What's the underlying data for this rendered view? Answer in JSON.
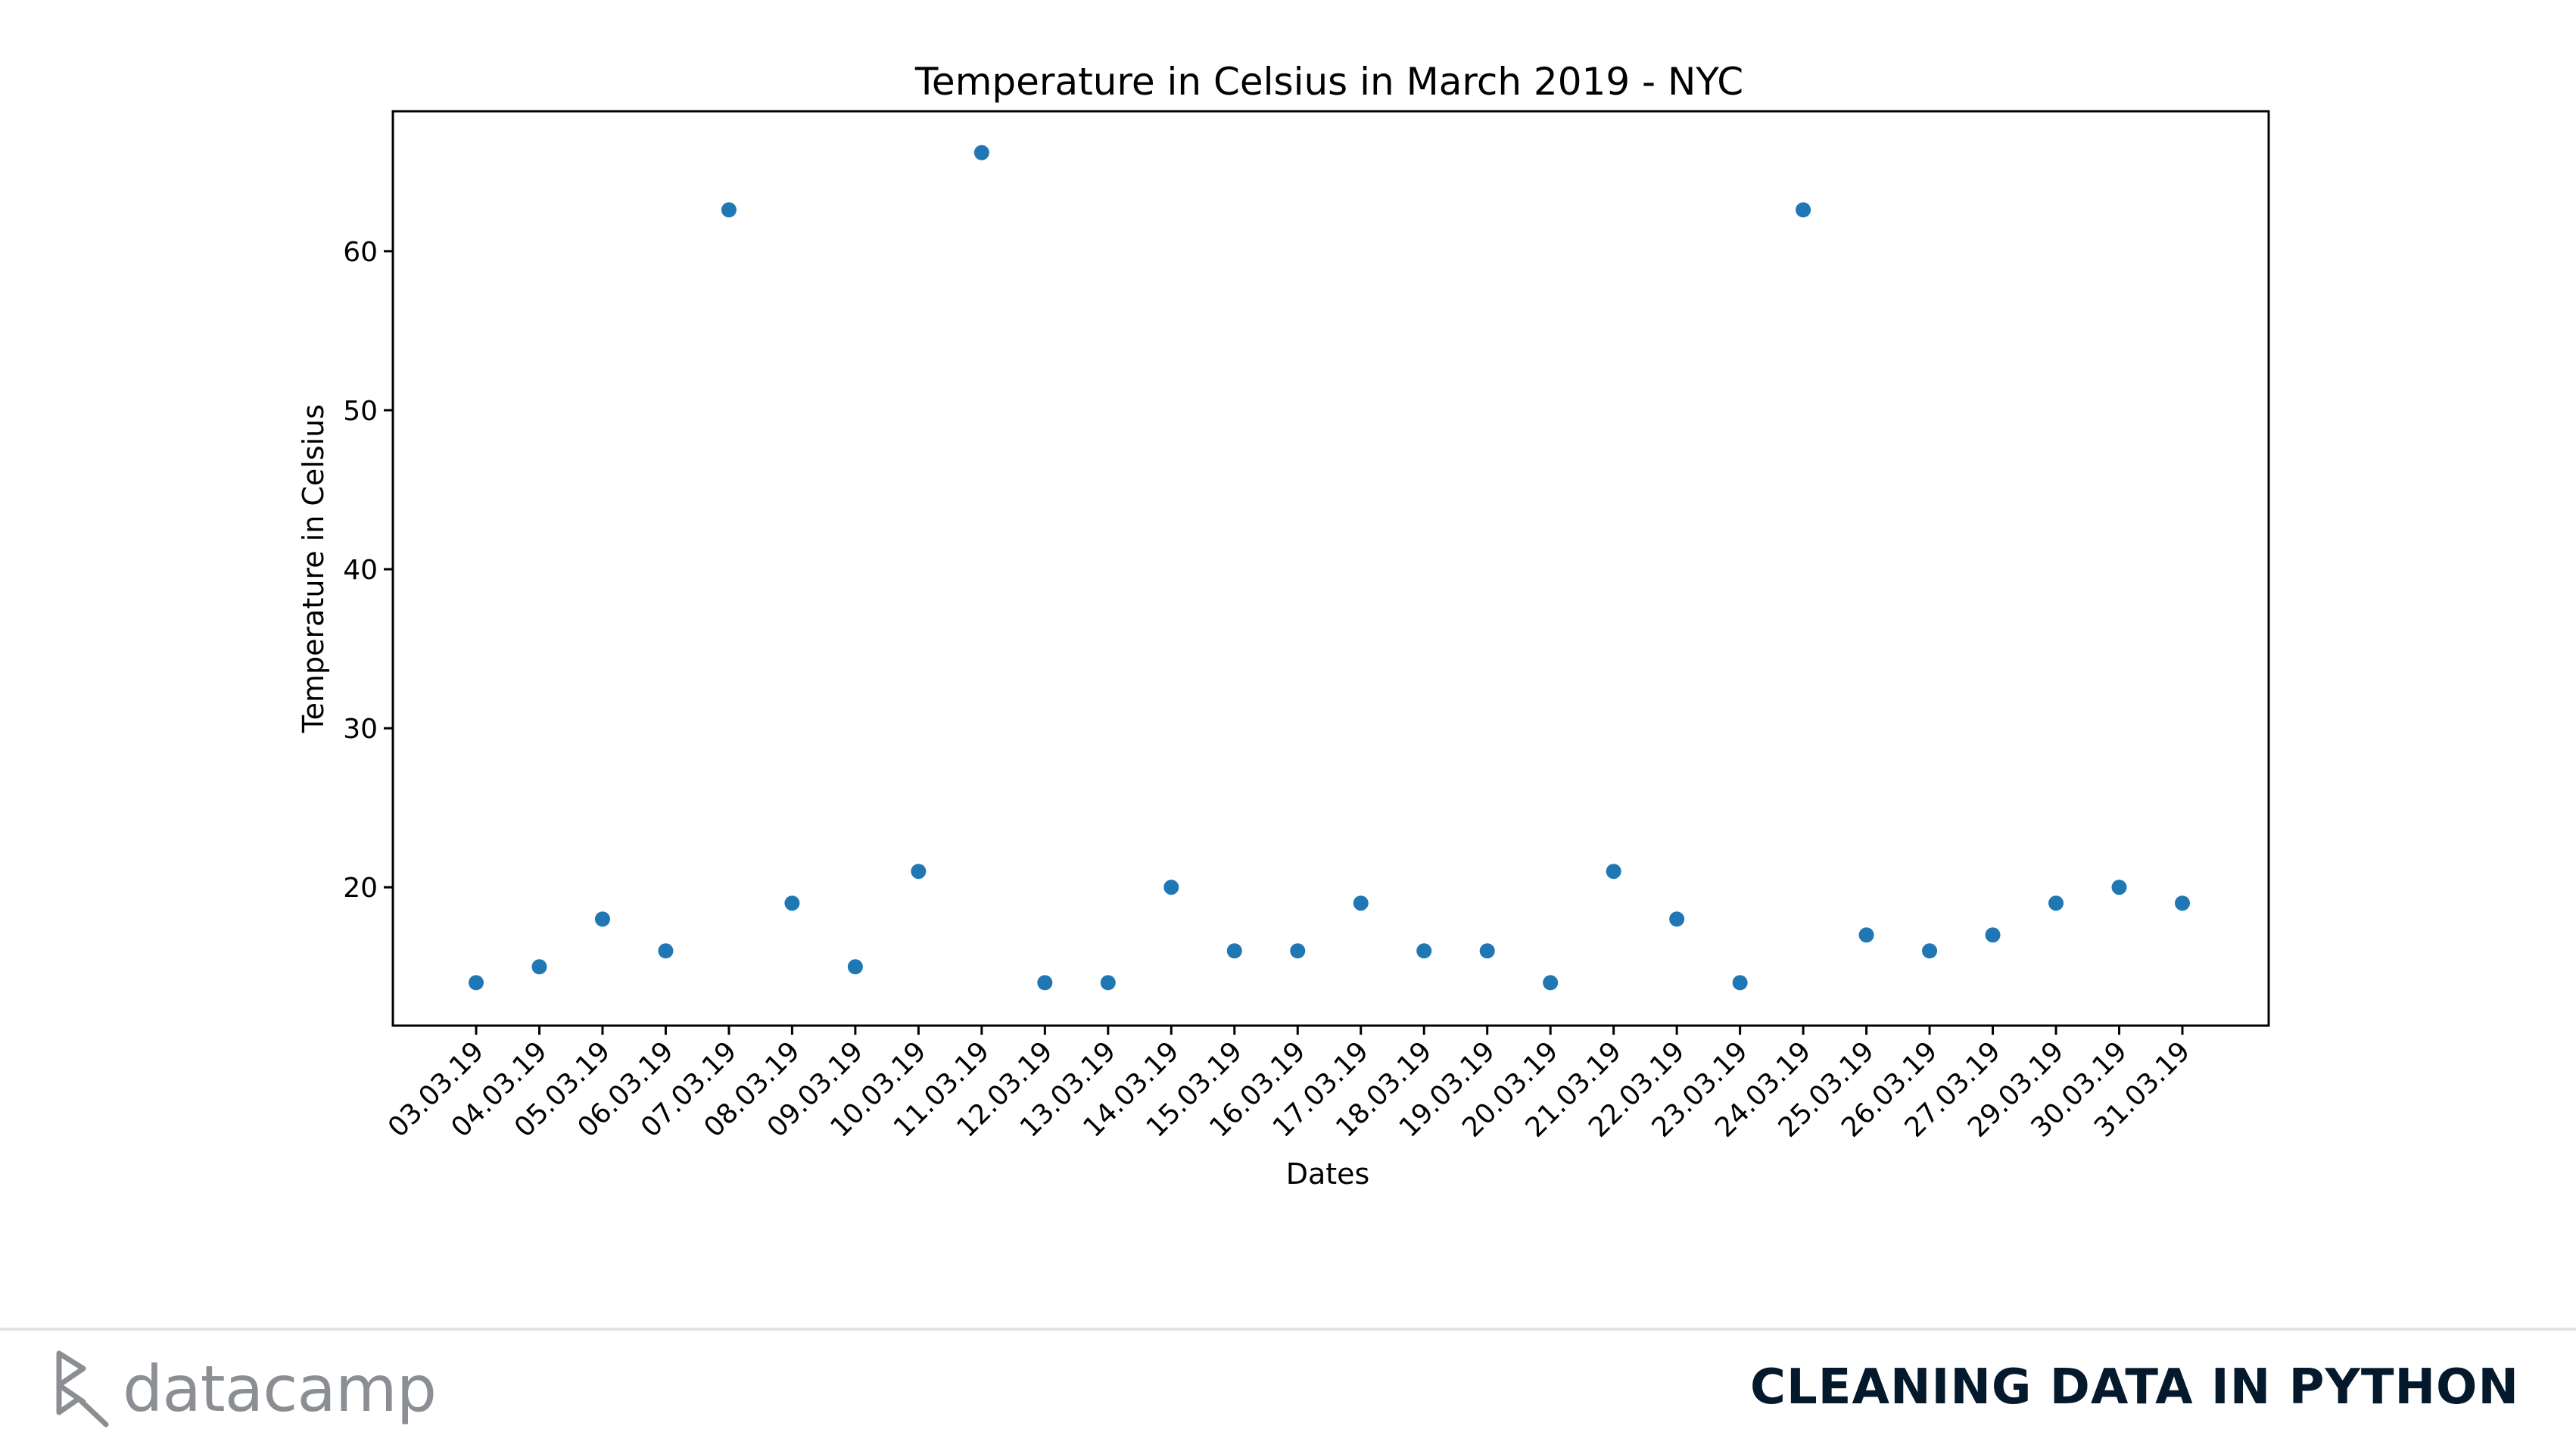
{
  "chart_data": {
    "type": "scatter",
    "title": "Temperature in Celsius in March 2019 - NYC",
    "xlabel": "Dates",
    "ylabel": "Temperature in Celsius",
    "ylim": [
      11.3,
      68.8
    ],
    "yticks": [
      20,
      30,
      40,
      50,
      60
    ],
    "grid": false,
    "marker_color": "#1f77b4",
    "x": [
      "03.03.19",
      "04.03.19",
      "05.03.19",
      "06.03.19",
      "07.03.19",
      "08.03.19",
      "09.03.19",
      "10.03.19",
      "11.03.19",
      "12.03.19",
      "13.03.19",
      "14.03.19",
      "15.03.19",
      "16.03.19",
      "17.03.19",
      "18.03.19",
      "19.03.19",
      "20.03.19",
      "21.03.19",
      "22.03.19",
      "23.03.19",
      "24.03.19",
      "25.03.19",
      "26.03.19",
      "27.03.19",
      "29.03.19",
      "30.03.19",
      "31.03.19"
    ],
    "y": [
      14,
      15,
      18,
      16,
      62.6,
      19,
      15,
      21,
      66.2,
      14,
      14,
      20,
      16,
      16,
      19,
      16,
      16,
      14,
      21,
      18,
      14,
      62.6,
      17,
      16,
      17,
      19,
      20,
      19
    ]
  },
  "footer": {
    "brand": "datacamp",
    "course_title": "CLEANING DATA IN PYTHON",
    "logo_icon": "datacamp-logo-icon",
    "brand_color": "#8b8f94",
    "title_color": "#05192d"
  }
}
